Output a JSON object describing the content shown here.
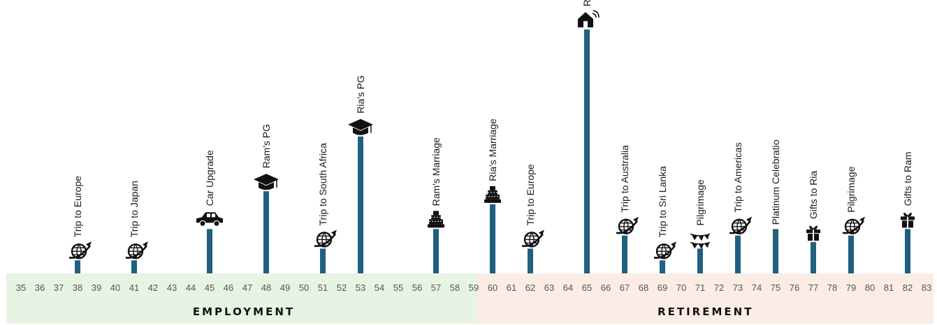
{
  "chart_data": {
    "type": "bar",
    "x_range": [
      35,
      83
    ],
    "phases": [
      {
        "label": "EMPLOYMENT",
        "from": 35,
        "to": 59,
        "color": "#e8f4e3"
      },
      {
        "label": "RETIREMENT",
        "from": 60,
        "to": 83,
        "color": "#fbece6"
      }
    ],
    "bar_color": "#20607e",
    "events": [
      {
        "age": 38,
        "label": "Trip to Europe",
        "icon": "globe-plane-icon",
        "value": 1
      },
      {
        "age": 41,
        "label": "Trip to Japan",
        "icon": "globe-plane-icon",
        "value": 1
      },
      {
        "age": 45,
        "label": "Car Upgrade",
        "icon": "car-icon",
        "value": 3.4
      },
      {
        "age": 48,
        "label": "Ram's PG",
        "icon": "graduation-cap-icon",
        "value": 6.3
      },
      {
        "age": 51,
        "label": "Trip to South Africa",
        "icon": "globe-plane-icon",
        "value": 1.9
      },
      {
        "age": 53,
        "label": "Ria's PG",
        "icon": "graduation-cap-icon",
        "value": 10.5
      },
      {
        "age": 57,
        "label": "Ram's Marriage",
        "icon": "wedding-cake-icon",
        "value": 3.4
      },
      {
        "age": 60,
        "label": "Ria's Marriage",
        "icon": "wedding-cake-icon",
        "value": 5.3
      },
      {
        "age": 62,
        "label": "Trip to Europe",
        "icon": "globe-plane-icon",
        "value": 1.9
      },
      {
        "age": 65,
        "label": "Retirement Home",
        "icon": "smart-home-icon",
        "value": 18.7
      },
      {
        "age": 67,
        "label": "Trip to Australia",
        "icon": "globe-plane-icon",
        "value": 2.9
      },
      {
        "age": 69,
        "label": "Trip to Sri Lanka",
        "icon": "globe-plane-icon",
        "value": 1
      },
      {
        "age": 71,
        "label": "Pilgrimage",
        "icon": "bunting-flags-icon",
        "value": 1.9
      },
      {
        "age": 73,
        "label": "Trip to Americas",
        "icon": "globe-plane-icon",
        "value": 2.9
      },
      {
        "age": 75,
        "label": "Platinum Celebratio",
        "icon": "",
        "value": 3.4
      },
      {
        "age": 77,
        "label": "Gifts to Ria",
        "icon": "gift-icon",
        "value": 2.4
      },
      {
        "age": 79,
        "label": "Pilgrimage",
        "icon": "globe-plane-icon",
        "value": 2.9
      },
      {
        "age": 82,
        "label": "Gifts to Ram",
        "icon": "gift-icon",
        "value": 3.4
      }
    ]
  }
}
